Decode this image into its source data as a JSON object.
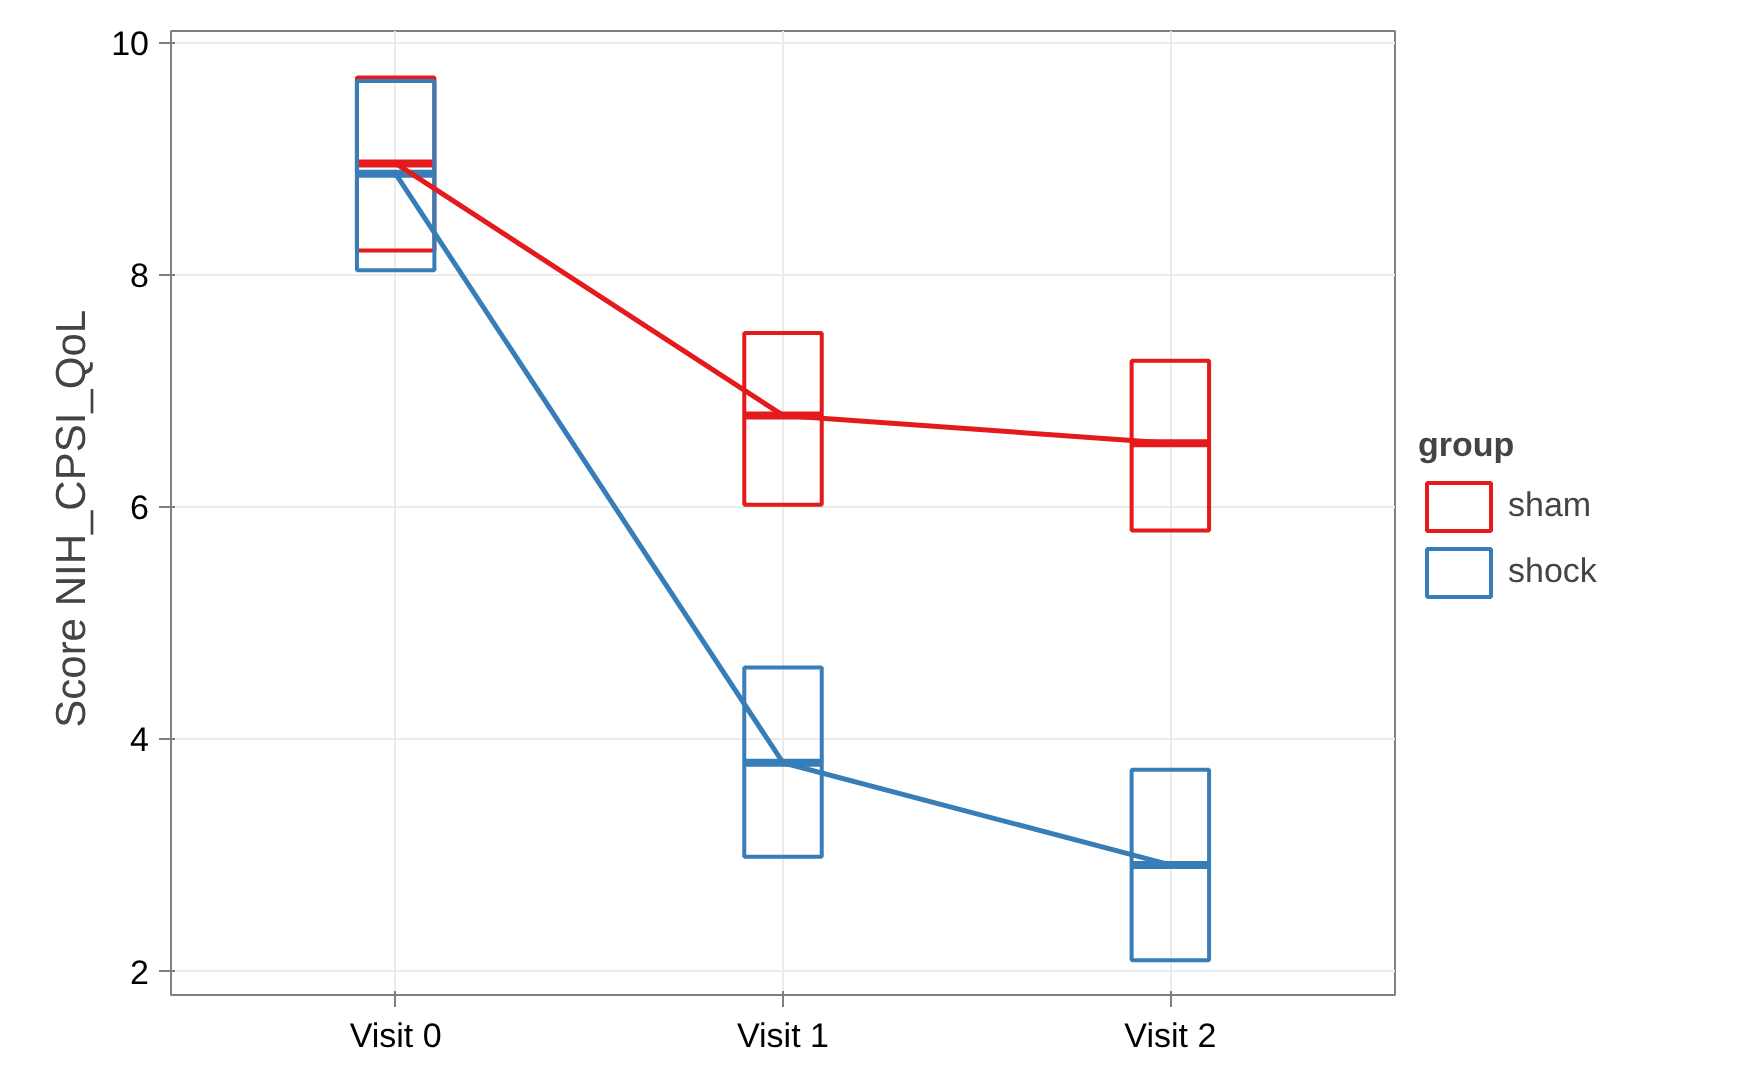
{
  "chart_data": {
    "type": "box",
    "ylabel": "Score  NIH_CPSI_QoL",
    "legend_title": "group",
    "categories": [
      "Visit 0",
      "Visit 1",
      "Visit 2"
    ],
    "ylim": [
      1.8,
      10.1
    ],
    "yticks": [
      2,
      4,
      6,
      8,
      10
    ],
    "grid": true,
    "legend": "right",
    "series": [
      {
        "name": "sham",
        "color": "#e41a1c",
        "type": "box",
        "boxes": [
          {
            "low": 8.21,
            "q1": 8.21,
            "median": 8.96,
            "q3": 9.7,
            "high": 9.7
          },
          {
            "low": 6.02,
            "q1": 6.02,
            "median": 6.79,
            "q3": 7.5,
            "high": 7.5
          },
          {
            "low": 5.8,
            "q1": 5.8,
            "median": 6.55,
            "q3": 7.26,
            "high": 7.26
          }
        ]
      },
      {
        "name": "shock",
        "color": "#377eb8",
        "type": "box",
        "boxes": [
          {
            "low": 8.04,
            "q1": 8.04,
            "median": 8.87,
            "q3": 9.67,
            "high": 9.67
          },
          {
            "low": 2.99,
            "q1": 2.99,
            "median": 3.8,
            "q3": 4.62,
            "high": 4.62
          },
          {
            "low": 2.1,
            "q1": 2.1,
            "median": 2.92,
            "q3": 3.74,
            "high": 3.74
          }
        ]
      },
      {
        "color": "#e41a1c",
        "type": "line",
        "values": [
          8.96,
          6.79,
          6.55
        ]
      },
      {
        "color": "#377eb8",
        "type": "line",
        "values": [
          8.87,
          3.8,
          2.92
        ]
      }
    ]
  }
}
